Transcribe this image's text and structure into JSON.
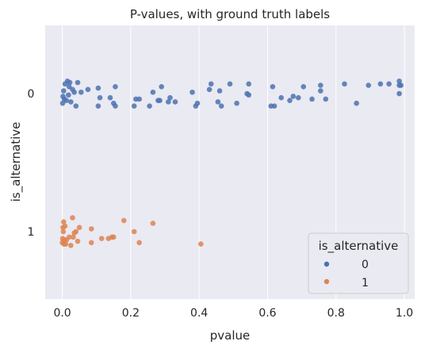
{
  "chart_data": {
    "type": "scatter",
    "title": "P-values, with ground truth labels",
    "xlabel": "pvalue",
    "ylabel": "is_alternative",
    "xlim": [
      -0.05,
      1.03
    ],
    "xticks": [
      "0.0",
      "0.2",
      "0.4",
      "0.6",
      "0.8",
      "1.0"
    ],
    "xtick_values": [
      0.0,
      0.2,
      0.4,
      0.6,
      0.8,
      1.0
    ],
    "categories": [
      "0",
      "1"
    ],
    "grid": true,
    "legend": {
      "title": "is_alternative",
      "position": "lower-right",
      "entries": [
        "0",
        "1"
      ]
    },
    "colors": {
      "0": "#4c72b0",
      "1": "#dd8452"
    },
    "series": [
      {
        "name": "0",
        "category": "0",
        "points": [
          [
            0.001,
            0.07
          ],
          [
            0.002,
            0.02
          ],
          [
            0.004,
            -0.02
          ],
          [
            0.006,
            0.04
          ],
          [
            0.008,
            -0.07
          ],
          [
            0.012,
            0.05
          ],
          [
            0.015,
            -0.09
          ],
          [
            0.018,
            0.01
          ],
          [
            0.02,
            -0.05
          ],
          [
            0.022,
            -0.08
          ],
          [
            0.025,
            0.06
          ],
          [
            0.03,
            -0.03
          ],
          [
            0.035,
            -0.01
          ],
          [
            0.04,
            0.09
          ],
          [
            0.045,
            -0.08
          ],
          [
            0.055,
            -0.01
          ],
          [
            0.075,
            -0.03
          ],
          [
            0.105,
            0.09
          ],
          [
            0.11,
            0.03
          ],
          [
            0.105,
            -0.04
          ],
          [
            0.14,
            0.03
          ],
          [
            0.15,
            0.07
          ],
          [
            0.155,
            0.09
          ],
          [
            0.155,
            -0.05
          ],
          [
            0.21,
            0.09
          ],
          [
            0.215,
            0.04
          ],
          [
            0.225,
            0.04
          ],
          [
            0.255,
            0.09
          ],
          [
            0.265,
            -0.01
          ],
          [
            0.28,
            0.05
          ],
          [
            0.285,
            0.05
          ],
          [
            0.29,
            -0.05
          ],
          [
            0.31,
            0.06
          ],
          [
            0.315,
            0.03
          ],
          [
            0.33,
            0.06
          ],
          [
            0.38,
            -0.01
          ],
          [
            0.39,
            0.09
          ],
          [
            0.395,
            0.07
          ],
          [
            0.43,
            -0.03
          ],
          [
            0.435,
            -0.07
          ],
          [
            0.455,
            0.06
          ],
          [
            0.46,
            -0.02
          ],
          [
            0.465,
            0.09
          ],
          [
            0.49,
            -0.07
          ],
          [
            0.51,
            0.07
          ],
          [
            0.54,
            0.0
          ],
          [
            0.545,
            0.01
          ],
          [
            0.545,
            -0.07
          ],
          [
            0.61,
            0.09
          ],
          [
            0.62,
            0.09
          ],
          [
            0.615,
            -0.05
          ],
          [
            0.64,
            0.03
          ],
          [
            0.665,
            0.05
          ],
          [
            0.675,
            0.02
          ],
          [
            0.69,
            0.03
          ],
          [
            0.705,
            -0.05
          ],
          [
            0.73,
            0.04
          ],
          [
            0.755,
            -0.02
          ],
          [
            0.755,
            -0.06
          ],
          [
            0.77,
            0.04
          ],
          [
            0.825,
            -0.07
          ],
          [
            0.86,
            0.07
          ],
          [
            0.895,
            -0.06
          ],
          [
            0.93,
            -0.07
          ],
          [
            0.955,
            -0.07
          ],
          [
            0.985,
            0.0
          ],
          [
            0.985,
            -0.06
          ],
          [
            0.985,
            -0.09
          ],
          [
            0.99,
            -0.06
          ]
        ]
      },
      {
        "name": "1",
        "category": "1",
        "points": [
          [
            0.0,
            0.08
          ],
          [
            0.001,
            0.05
          ],
          [
            0.002,
            -0.03
          ],
          [
            0.003,
            0.0
          ],
          [
            0.004,
            -0.07
          ],
          [
            0.005,
            0.09
          ],
          [
            0.006,
            0.06
          ],
          [
            0.008,
            -0.04
          ],
          [
            0.01,
            0.09
          ],
          [
            0.012,
            0.06
          ],
          [
            0.02,
            0.04
          ],
          [
            0.025,
            0.1
          ],
          [
            0.03,
            -0.1
          ],
          [
            0.032,
            0.04
          ],
          [
            0.035,
            0.01
          ],
          [
            0.04,
            0.0
          ],
          [
            0.045,
            0.07
          ],
          [
            0.05,
            -0.03
          ],
          [
            0.085,
            0.08
          ],
          [
            0.085,
            -0.02
          ],
          [
            0.115,
            0.05
          ],
          [
            0.135,
            0.05
          ],
          [
            0.145,
            0.04
          ],
          [
            0.15,
            0.04
          ],
          [
            0.18,
            -0.08
          ],
          [
            0.21,
            0.0
          ],
          [
            0.225,
            0.08
          ],
          [
            0.265,
            -0.06
          ],
          [
            0.405,
            0.09
          ]
        ]
      }
    ]
  }
}
